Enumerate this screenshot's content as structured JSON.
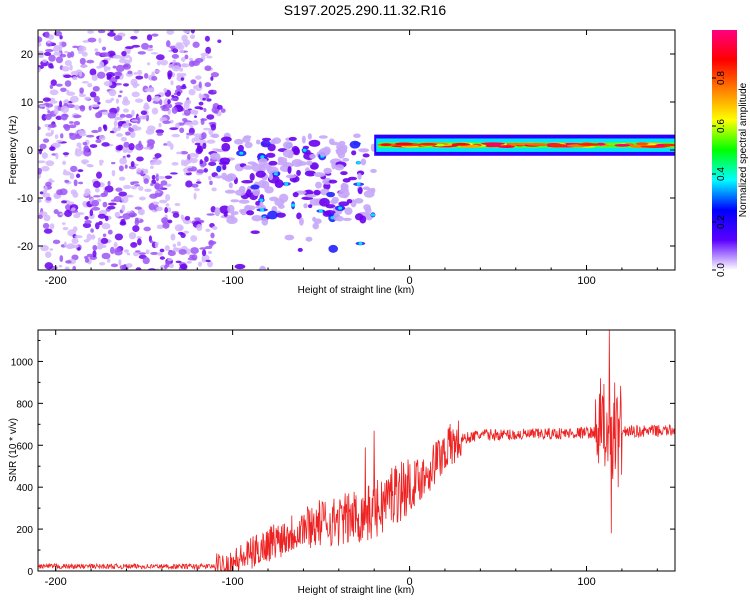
{
  "figure_title": "S197.2025.290.11.32.R16",
  "chart_data": [
    {
      "type": "heatmap",
      "xlabel": "Height of straight line (km)",
      "ylabel": "Frequency (Hz)",
      "xlim": [
        -210,
        150
      ],
      "ylim": [
        -25,
        25
      ],
      "x_ticks": [
        -200,
        -100,
        0,
        100
      ],
      "y_ticks": [
        -20,
        -10,
        0,
        10,
        20
      ],
      "colorbar": {
        "label": "Normalized spectral amplitude",
        "range": [
          0,
          1
        ],
        "ticks": [
          0,
          0.2,
          0.4,
          0.6,
          0.8
        ],
        "tick_labels": [
          "0.0",
          "0.2",
          "0.4",
          "0.6",
          "0.8"
        ],
        "colormap": [
          "#ffffff",
          "#5a00ff",
          "#0000ff",
          "#00ffff",
          "#00ff00",
          "#ffff00",
          "#ff8000",
          "#ff0000",
          "#ff0080"
        ]
      },
      "features": [
        {
          "name": "noise_scatter",
          "x_range": [
            -210,
            -110
          ],
          "y_range": [
            -25,
            25
          ],
          "amplitude": 0.08
        },
        {
          "name": "turbulent_return",
          "x_range": [
            -110,
            -20
          ],
          "y_range": [
            -20,
            12
          ],
          "amplitude": 0.2
        },
        {
          "name": "coherent_line",
          "x_range": [
            -20,
            150
          ],
          "frequency_hz": [
            0,
            2
          ],
          "amplitude": 0.85
        }
      ]
    },
    {
      "type": "line",
      "xlabel": "Height of straight line (km)",
      "ylabel": "SNR (10 * v/v)",
      "xlim": [
        -210,
        150
      ],
      "ylim": [
        0,
        1150
      ],
      "x_ticks": [
        -200,
        -100,
        0,
        100
      ],
      "y_ticks": [
        0,
        200,
        400,
        600,
        800,
        1000
      ],
      "series": [
        {
          "name": "SNR",
          "color": "#ee2222",
          "trend_x": [
            -210,
            -110,
            -100,
            -90,
            -80,
            -70,
            -60,
            -50,
            -40,
            -30,
            -20,
            -15,
            -10,
            -5,
            0,
            10,
            20,
            30,
            40,
            60,
            80,
            100,
            105,
            110,
            115,
            120,
            150
          ],
          "trend_y": [
            22,
            22,
            40,
            80,
            130,
            170,
            210,
            230,
            240,
            260,
            280,
            320,
            370,
            390,
            400,
            470,
            580,
            630,
            650,
            650,
            655,
            660,
            660,
            660,
            660,
            665,
            670
          ],
          "spikes": [
            {
              "x": -20,
              "y": 670
            },
            {
              "x": -25,
              "y": 590
            },
            {
              "x": 108,
              "y": 920
            },
            {
              "x": 113,
              "y": 1150
            },
            {
              "x": 114,
              "y": 180
            },
            {
              "x": 116,
              "y": 900
            },
            {
              "x": 118,
              "y": 400
            }
          ]
        }
      ]
    }
  ]
}
